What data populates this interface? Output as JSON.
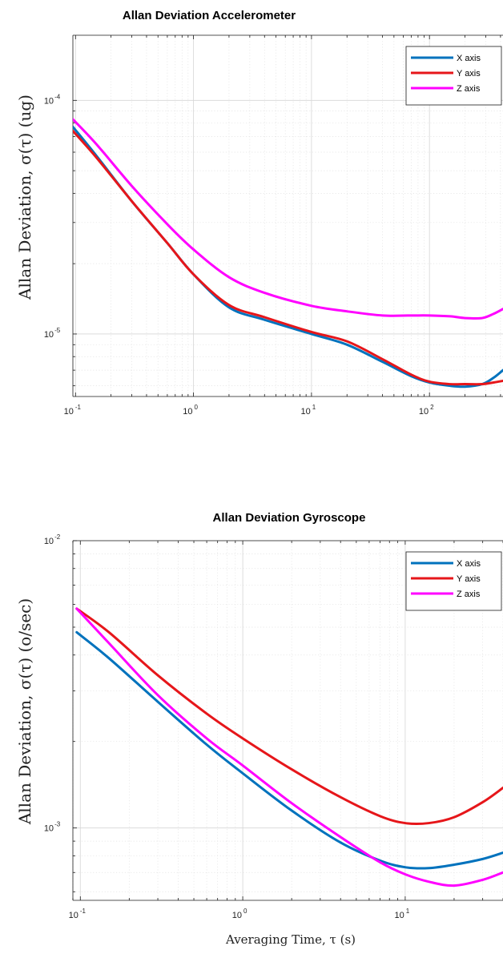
{
  "chart_data": [
    {
      "type": "line",
      "title": "Allan Deviation Accelerometer",
      "ylabel": "Allan Deviation, σ(τ) (ug)",
      "xlabel": "",
      "xscale": "log",
      "yscale": "log",
      "xlim": [
        0.095,
        420
      ],
      "ylim": [
        5.4e-06,
        0.00019
      ],
      "grid": true,
      "legend": "top-right",
      "x_ticks": [
        {
          "base": "10",
          "exp": "-1"
        },
        {
          "base": "10",
          "exp": "0"
        },
        {
          "base": "10",
          "exp": "1"
        },
        {
          "base": "10",
          "exp": "2"
        }
      ],
      "y_ticks": [
        {
          "base": "10",
          "exp": "-5"
        },
        {
          "base": "10",
          "exp": "-4"
        }
      ],
      "series": [
        {
          "name": "X axis",
          "color": "#0072BD",
          "x": [
            0.095,
            0.15,
            0.3,
            0.6,
            1,
            2,
            4,
            10,
            20,
            40,
            70,
            100,
            150,
            200,
            280,
            350,
            420
          ],
          "y": [
            7.7e-05,
            5.8e-05,
            3.7e-05,
            2.45e-05,
            1.8e-05,
            1.3e-05,
            1.15e-05,
            1e-05,
            9e-06,
            7.6e-06,
            6.6e-06,
            6.2e-06,
            6e-06,
            5.95e-06,
            6.1e-06,
            6.5e-06,
            7e-06
          ]
        },
        {
          "name": "Y axis",
          "color": "#E6161A",
          "x": [
            0.095,
            0.15,
            0.3,
            0.6,
            1,
            2,
            4,
            10,
            20,
            40,
            70,
            100,
            150,
            200,
            280,
            350,
            420
          ],
          "y": [
            7.4e-05,
            5.7e-05,
            3.7e-05,
            2.45e-05,
            1.8e-05,
            1.33e-05,
            1.18e-05,
            1.02e-05,
            9.3e-06,
            7.8e-06,
            6.7e-06,
            6.25e-06,
            6.1e-06,
            6.1e-06,
            6.1e-06,
            6.2e-06,
            6.3e-06
          ]
        },
        {
          "name": "Z axis",
          "color": "#FF00FF",
          "x": [
            0.095,
            0.15,
            0.3,
            0.6,
            1,
            2,
            4,
            10,
            20,
            40,
            70,
            100,
            150,
            200,
            280,
            350,
            420
          ],
          "y": [
            8.3e-05,
            6.5e-05,
            4.3e-05,
            2.95e-05,
            2.3e-05,
            1.75e-05,
            1.5e-05,
            1.32e-05,
            1.25e-05,
            1.2e-05,
            1.2e-05,
            1.2e-05,
            1.19e-05,
            1.17e-05,
            1.17e-05,
            1.22e-05,
            1.28e-05
          ]
        }
      ]
    },
    {
      "type": "line",
      "title": "Allan Deviation Gyroscope",
      "ylabel": "Allan Deviation, σ(τ) (o/sec)",
      "xlabel": "Averaging Time, τ (s)",
      "xscale": "log",
      "yscale": "log",
      "xlim": [
        0.09,
        40
      ],
      "ylim": [
        0.00056,
        0.01
      ],
      "grid": true,
      "legend": "top-right",
      "x_ticks": [
        {
          "base": "10",
          "exp": "-1"
        },
        {
          "base": "10",
          "exp": "0"
        },
        {
          "base": "10",
          "exp": "1"
        }
      ],
      "y_ticks": [
        {
          "base": "10",
          "exp": "-3"
        },
        {
          "base": "10",
          "exp": "-2"
        }
      ],
      "series": [
        {
          "name": "X axis",
          "color": "#0072BD",
          "x": [
            0.095,
            0.15,
            0.3,
            0.6,
            1,
            2,
            4,
            7,
            10,
            14,
            20,
            30,
            40
          ],
          "y": [
            0.0048,
            0.0039,
            0.00275,
            0.00195,
            0.00155,
            0.00115,
            0.00089,
            0.00077,
            0.00073,
            0.000725,
            0.000745,
            0.00078,
            0.00082
          ]
        },
        {
          "name": "Y axis",
          "color": "#E6161A",
          "x": [
            0.095,
            0.15,
            0.3,
            0.6,
            1,
            2,
            4,
            7,
            10,
            14,
            20,
            30,
            40
          ],
          "y": [
            0.0058,
            0.0048,
            0.0034,
            0.0025,
            0.00205,
            0.0016,
            0.00128,
            0.0011,
            0.00104,
            0.00104,
            0.00109,
            0.00123,
            0.00138
          ]
        },
        {
          "name": "Z axis",
          "color": "#FF00FF",
          "x": [
            0.095,
            0.15,
            0.3,
            0.6,
            1,
            2,
            4,
            7,
            10,
            14,
            20,
            30,
            40
          ],
          "y": [
            0.0058,
            0.0044,
            0.0029,
            0.00205,
            0.00165,
            0.00122,
            0.00093,
            0.00076,
            0.00069,
            0.00065,
            0.00063,
            0.00066,
            0.0007
          ]
        }
      ]
    }
  ]
}
